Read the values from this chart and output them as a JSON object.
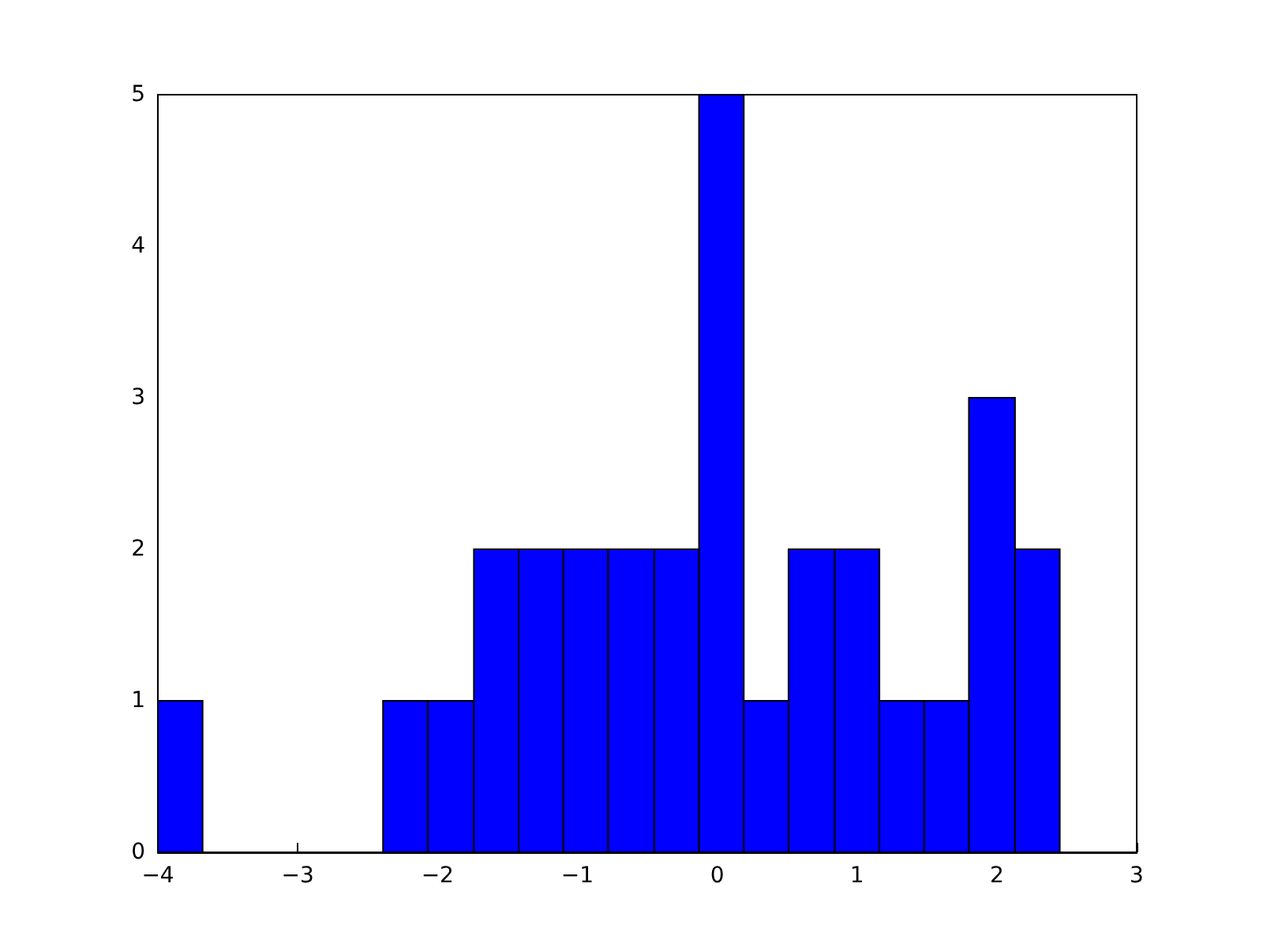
{
  "chart_data": {
    "type": "histogram",
    "bins": [
      -4,
      -3.68,
      -2.39,
      -2.07,
      -1.74,
      -1.42,
      -1.1,
      -0.78,
      -0.45,
      -0.13,
      0.19,
      0.51,
      0.84,
      1.16,
      1.48,
      1.8,
      2.13,
      2.45
    ],
    "values": [
      1,
      0,
      1,
      1,
      2,
      2,
      2,
      2,
      2,
      5,
      1,
      2,
      2,
      1,
      1,
      3,
      2
    ],
    "color": "#0000ff",
    "xlim": [
      -4,
      3
    ],
    "xticks": [
      -4,
      -3,
      -2,
      -1,
      0,
      1,
      2,
      3
    ],
    "ylim": [
      0,
      5
    ],
    "yticks": [
      0,
      1,
      2,
      3,
      4,
      5
    ],
    "grid": false
  }
}
